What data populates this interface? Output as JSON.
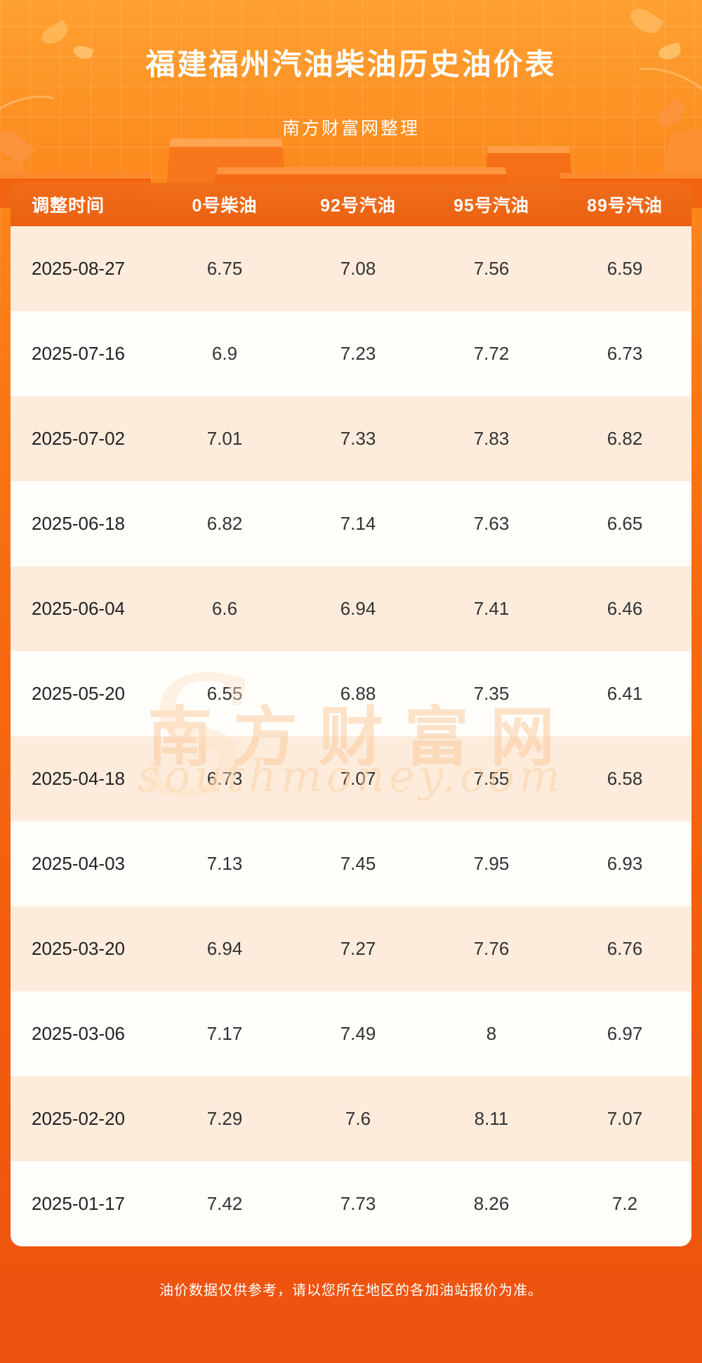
{
  "header": {
    "title": "福建福州汽油柴油历史油价表",
    "subtitle": "南方财富网整理"
  },
  "chart_data": {
    "type": "table",
    "title": "福建福州汽油柴油历史油价表",
    "columns": [
      "调整时间",
      "0号柴油",
      "92号汽油",
      "95号汽油",
      "89号汽油"
    ],
    "rows": [
      [
        "2025-08-27",
        "6.75",
        "7.08",
        "7.56",
        "6.59"
      ],
      [
        "2025-07-16",
        "6.9",
        "7.23",
        "7.72",
        "6.73"
      ],
      [
        "2025-07-02",
        "7.01",
        "7.33",
        "7.83",
        "6.82"
      ],
      [
        "2025-06-18",
        "6.82",
        "7.14",
        "7.63",
        "6.65"
      ],
      [
        "2025-06-04",
        "6.6",
        "6.94",
        "7.41",
        "6.46"
      ],
      [
        "2025-05-20",
        "6.55",
        "6.88",
        "7.35",
        "6.41"
      ],
      [
        "2025-04-18",
        "6.73",
        "7.07",
        "7.55",
        "6.58"
      ],
      [
        "2025-04-03",
        "7.13",
        "7.45",
        "7.95",
        "6.93"
      ],
      [
        "2025-03-20",
        "6.94",
        "7.27",
        "7.76",
        "6.76"
      ],
      [
        "2025-03-06",
        "7.17",
        "7.49",
        "8",
        "6.97"
      ],
      [
        "2025-02-20",
        "7.29",
        "7.6",
        "8.11",
        "7.07"
      ],
      [
        "2025-01-17",
        "7.42",
        "7.73",
        "8.26",
        "7.2"
      ]
    ]
  },
  "watermark": {
    "swoosh": "S",
    "text": "南方财富网",
    "domain": "southmoney.com"
  },
  "footer": {
    "note": "油价数据仅供参考，请以您所在地区的各加油站报价为准。"
  },
  "colors": {
    "background_top": "#ffa132",
    "background_bottom": "#ee520f",
    "row_peach": "#fdecdc",
    "row_white": "#fffefb",
    "header_text": "#ffffff",
    "cell_text": "#333333"
  }
}
